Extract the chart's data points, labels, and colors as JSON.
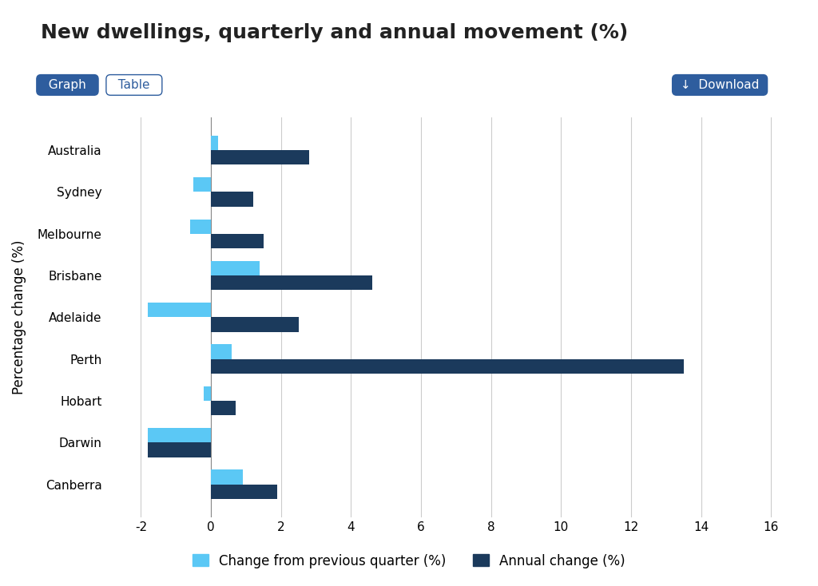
{
  "title": "New dwellings, quarterly and annual movement (%)",
  "categories": [
    "Australia",
    "Sydney",
    "Melbourne",
    "Brisbane",
    "Adelaide",
    "Perth",
    "Hobart",
    "Darwin",
    "Canberra"
  ],
  "quarterly": [
    0.2,
    -0.5,
    -0.6,
    1.4,
    -1.8,
    0.6,
    -0.2,
    -1.8,
    0.9
  ],
  "annual": [
    2.8,
    1.2,
    1.5,
    4.6,
    2.5,
    13.5,
    0.7,
    -1.8,
    1.9
  ],
  "color_quarterly": "#5bc8f5",
  "color_annual": "#1b3a5c",
  "background_color": "#ffffff",
  "ylabel": "Percentage change (%)",
  "xlim": [
    -3,
    17
  ],
  "xticks": [
    -2,
    0,
    2,
    4,
    6,
    8,
    10,
    12,
    14,
    16
  ],
  "legend_quarterly": "Change from previous quarter (%)",
  "legend_annual": "Annual change (%)",
  "bar_height": 0.35,
  "title_fontsize": 18,
  "axis_fontsize": 12,
  "tick_fontsize": 11,
  "legend_fontsize": 12
}
